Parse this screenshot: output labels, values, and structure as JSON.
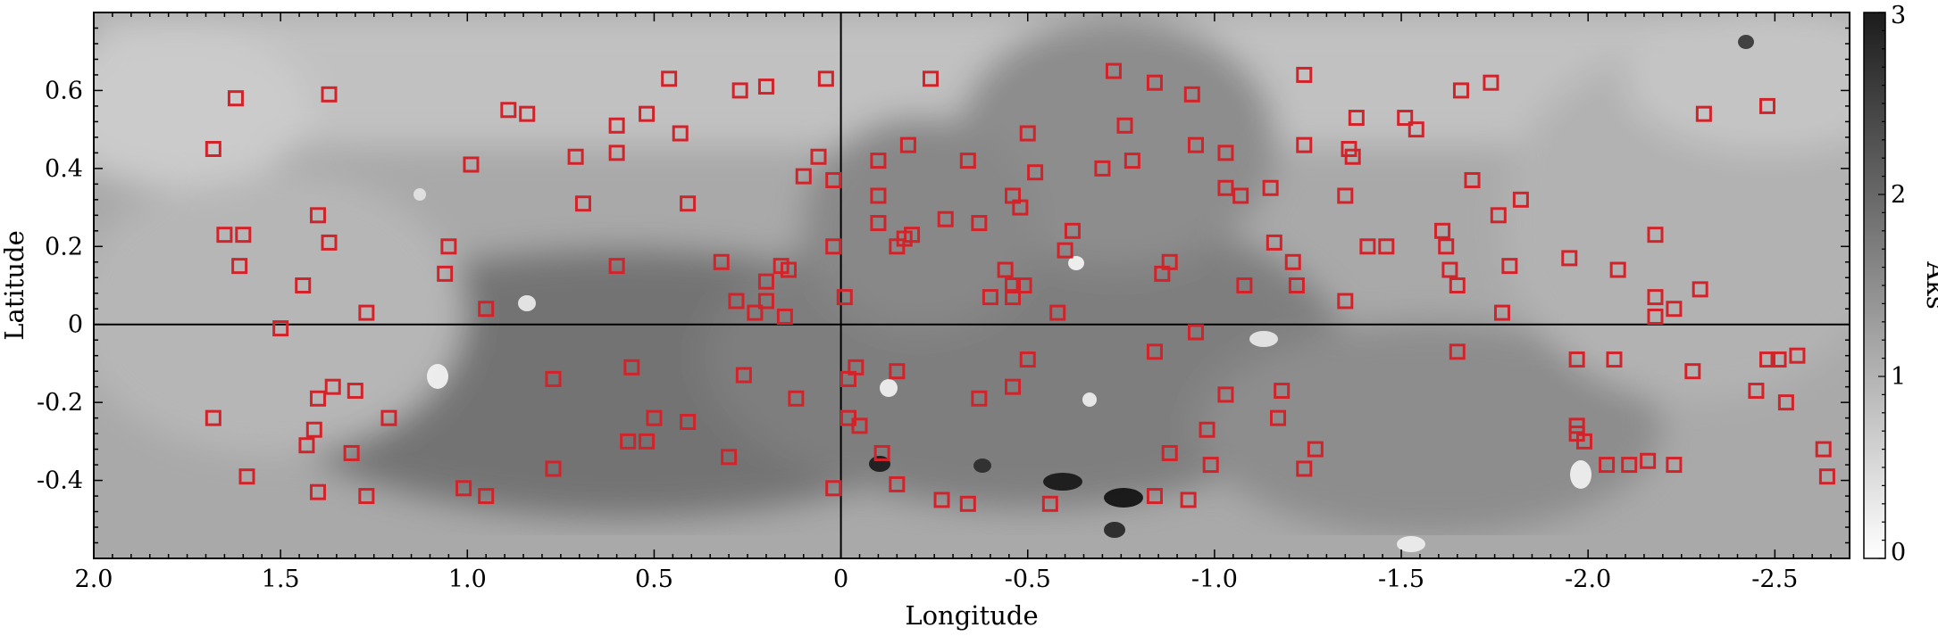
{
  "chart_data": {
    "type": "scatter",
    "title": "",
    "xlabel": "Longitude",
    "ylabel": "Latitude",
    "xlim": [
      2.0,
      -2.7
    ],
    "ylim": [
      -0.6,
      0.8
    ],
    "x_ticks": [
      "2.0",
      "1.5",
      "1.0",
      "0.5",
      "0",
      "-0.5",
      "-1.0",
      "-1.5",
      "-2.0",
      "-2.5"
    ],
    "x_tick_values": [
      2.0,
      1.5,
      1.0,
      0.5,
      0,
      -0.5,
      -1.0,
      -1.5,
      -2.0,
      -2.5
    ],
    "y_ticks": [
      "0.6",
      "0.4",
      "0.2",
      "0",
      "-0.2",
      "-0.4"
    ],
    "y_tick_values": [
      0.6,
      0.4,
      0.2,
      0,
      -0.2,
      -0.4
    ],
    "colorbar": {
      "label": "Aks",
      "range": [
        0,
        3
      ],
      "ticks": [
        "0",
        "1",
        "2",
        "3"
      ],
      "tick_values": [
        0,
        1,
        2,
        3
      ],
      "colormap": "white-to-black"
    },
    "background": "grayscale extinction (Aks) map",
    "reference_lines": {
      "x": 0,
      "y": 0
    },
    "marker_style": "open square",
    "marker_color": "#d2232a",
    "series": [
      {
        "points": [
          [
            1.68,
            0.45
          ],
          [
            1.62,
            0.58
          ],
          [
            1.37,
            0.59
          ],
          [
            1.65,
            0.23
          ],
          [
            1.6,
            0.23
          ],
          [
            1.61,
            0.15
          ],
          [
            1.4,
            0.28
          ],
          [
            1.37,
            0.21
          ],
          [
            1.44,
            0.1
          ],
          [
            1.27,
            0.03
          ],
          [
            1.5,
            -0.01
          ],
          [
            1.68,
            -0.24
          ],
          [
            1.4,
            -0.19
          ],
          [
            1.36,
            -0.16
          ],
          [
            1.3,
            -0.17
          ],
          [
            1.41,
            -0.27
          ],
          [
            1.43,
            -0.31
          ],
          [
            1.31,
            -0.33
          ],
          [
            1.59,
            -0.39
          ],
          [
            1.4,
            -0.43
          ],
          [
            1.27,
            -0.44
          ],
          [
            1.21,
            -0.24
          ],
          [
            0.99,
            0.41
          ],
          [
            0.89,
            0.55
          ],
          [
            0.84,
            0.54
          ],
          [
            1.05,
            0.2
          ],
          [
            1.06,
            0.13
          ],
          [
            0.95,
            0.04
          ],
          [
            1.01,
            -0.42
          ],
          [
            0.95,
            -0.44
          ],
          [
            0.77,
            -0.14
          ],
          [
            0.77,
            -0.37
          ],
          [
            0.71,
            0.43
          ],
          [
            0.69,
            0.31
          ],
          [
            0.6,
            0.51
          ],
          [
            0.6,
            0.44
          ],
          [
            0.6,
            0.15
          ],
          [
            0.56,
            -0.11
          ],
          [
            0.52,
            0.54
          ],
          [
            0.46,
            0.63
          ],
          [
            0.43,
            0.49
          ],
          [
            0.41,
            0.31
          ],
          [
            0.32,
            0.16
          ],
          [
            0.28,
            0.06
          ],
          [
            0.23,
            0.03
          ],
          [
            0.2,
            0.06
          ],
          [
            0.2,
            0.11
          ],
          [
            0.16,
            0.15
          ],
          [
            0.14,
            0.14
          ],
          [
            0.15,
            0.02
          ],
          [
            0.5,
            -0.24
          ],
          [
            0.41,
            -0.25
          ],
          [
            0.57,
            -0.3
          ],
          [
            0.52,
            -0.3
          ],
          [
            0.3,
            -0.34
          ],
          [
            0.26,
            -0.13
          ],
          [
            0.12,
            -0.19
          ],
          [
            0.27,
            0.6
          ],
          [
            0.2,
            0.61
          ],
          [
            0.04,
            0.63
          ],
          [
            0.1,
            0.38
          ],
          [
            0.06,
            0.43
          ],
          [
            0.02,
            0.37
          ],
          [
            0.02,
            0.2
          ],
          [
            -0.01,
            0.07
          ],
          [
            0.02,
            -0.42
          ],
          [
            -0.02,
            -0.24
          ],
          [
            -0.02,
            -0.14
          ],
          [
            -0.04,
            -0.11
          ],
          [
            -0.05,
            -0.26
          ],
          [
            -0.1,
            0.42
          ],
          [
            -0.1,
            0.33
          ],
          [
            -0.1,
            0.26
          ],
          [
            -0.15,
            0.2
          ],
          [
            -0.17,
            0.22
          ],
          [
            -0.19,
            0.23
          ],
          [
            -0.18,
            0.46
          ],
          [
            -0.24,
            0.63
          ],
          [
            -0.28,
            0.27
          ],
          [
            -0.34,
            0.42
          ],
          [
            -0.37,
            0.26
          ],
          [
            -0.15,
            -0.12
          ],
          [
            -0.11,
            -0.33
          ],
          [
            -0.15,
            -0.41
          ],
          [
            -0.27,
            -0.45
          ],
          [
            -0.34,
            -0.46
          ],
          [
            -0.37,
            -0.19
          ],
          [
            -0.4,
            0.07
          ],
          [
            -0.44,
            0.14
          ],
          [
            -0.46,
            0.07
          ],
          [
            -0.46,
            0.1
          ],
          [
            -0.49,
            0.1
          ],
          [
            -0.46,
            0.33
          ],
          [
            -0.48,
            0.3
          ],
          [
            -0.5,
            0.49
          ],
          [
            -0.52,
            0.39
          ],
          [
            -0.56,
            -0.46
          ],
          [
            -0.46,
            -0.16
          ],
          [
            -0.5,
            -0.09
          ],
          [
            -0.58,
            0.03
          ],
          [
            -0.6,
            0.19
          ],
          [
            -0.62,
            0.24
          ],
          [
            -0.7,
            0.4
          ],
          [
            -0.73,
            0.65
          ],
          [
            -0.76,
            0.51
          ],
          [
            -0.78,
            0.42
          ],
          [
            -0.84,
            0.62
          ],
          [
            -0.86,
            0.13
          ],
          [
            -0.88,
            0.16
          ],
          [
            -0.84,
            -0.07
          ],
          [
            -0.84,
            -0.44
          ],
          [
            -0.88,
            -0.33
          ],
          [
            -0.93,
            -0.45
          ],
          [
            -0.94,
            0.59
          ],
          [
            -0.95,
            0.46
          ],
          [
            -0.95,
            -0.02
          ],
          [
            -1.03,
            0.44
          ],
          [
            -1.03,
            0.35
          ],
          [
            -1.07,
            0.33
          ],
          [
            -1.15,
            0.35
          ],
          [
            -1.08,
            0.1
          ],
          [
            -1.03,
            -0.18
          ],
          [
            -0.98,
            -0.27
          ],
          [
            -0.99,
            -0.36
          ],
          [
            -1.16,
            0.21
          ],
          [
            -1.21,
            0.16
          ],
          [
            -1.22,
            0.1
          ],
          [
            -1.24,
            0.64
          ],
          [
            -1.24,
            0.46
          ],
          [
            -1.17,
            -0.24
          ],
          [
            -1.18,
            -0.17
          ],
          [
            -1.24,
            -0.37
          ],
          [
            -1.27,
            -0.32
          ],
          [
            -1.35,
            0.33
          ],
          [
            -1.35,
            0.06
          ],
          [
            -1.36,
            0.45
          ],
          [
            -1.37,
            0.43
          ],
          [
            -1.38,
            0.53
          ],
          [
            -1.41,
            0.2
          ],
          [
            -1.46,
            0.2
          ],
          [
            -1.51,
            0.53
          ],
          [
            -1.54,
            0.5
          ],
          [
            -1.61,
            0.24
          ],
          [
            -1.62,
            0.2
          ],
          [
            -1.63,
            0.14
          ],
          [
            -1.65,
            0.1
          ],
          [
            -1.65,
            -0.07
          ],
          [
            -1.66,
            0.6
          ],
          [
            -1.74,
            0.62
          ],
          [
            -1.69,
            0.37
          ],
          [
            -1.76,
            0.28
          ],
          [
            -1.77,
            0.03
          ],
          [
            -1.79,
            0.15
          ],
          [
            -1.82,
            0.32
          ],
          [
            -1.95,
            0.17
          ],
          [
            -1.97,
            -0.09
          ],
          [
            -1.97,
            -0.26
          ],
          [
            -1.97,
            -0.28
          ],
          [
            -1.99,
            -0.3
          ],
          [
            -2.05,
            -0.36
          ],
          [
            -2.08,
            0.14
          ],
          [
            -2.07,
            -0.09
          ],
          [
            -2.11,
            -0.36
          ],
          [
            -2.16,
            -0.35
          ],
          [
            -2.18,
            0.23
          ],
          [
            -2.18,
            0.07
          ],
          [
            -2.18,
            0.02
          ],
          [
            -2.23,
            0.04
          ],
          [
            -2.23,
            -0.36
          ],
          [
            -2.28,
            -0.12
          ],
          [
            -2.3,
            0.09
          ],
          [
            -2.31,
            0.54
          ],
          [
            -2.48,
            0.56
          ],
          [
            -2.48,
            -0.09
          ],
          [
            -2.51,
            -0.09
          ],
          [
            -2.56,
            -0.08
          ],
          [
            -2.45,
            -0.17
          ],
          [
            -2.53,
            -0.2
          ],
          [
            -2.63,
            -0.32
          ],
          [
            -2.64,
            -0.39
          ]
        ]
      }
    ]
  }
}
